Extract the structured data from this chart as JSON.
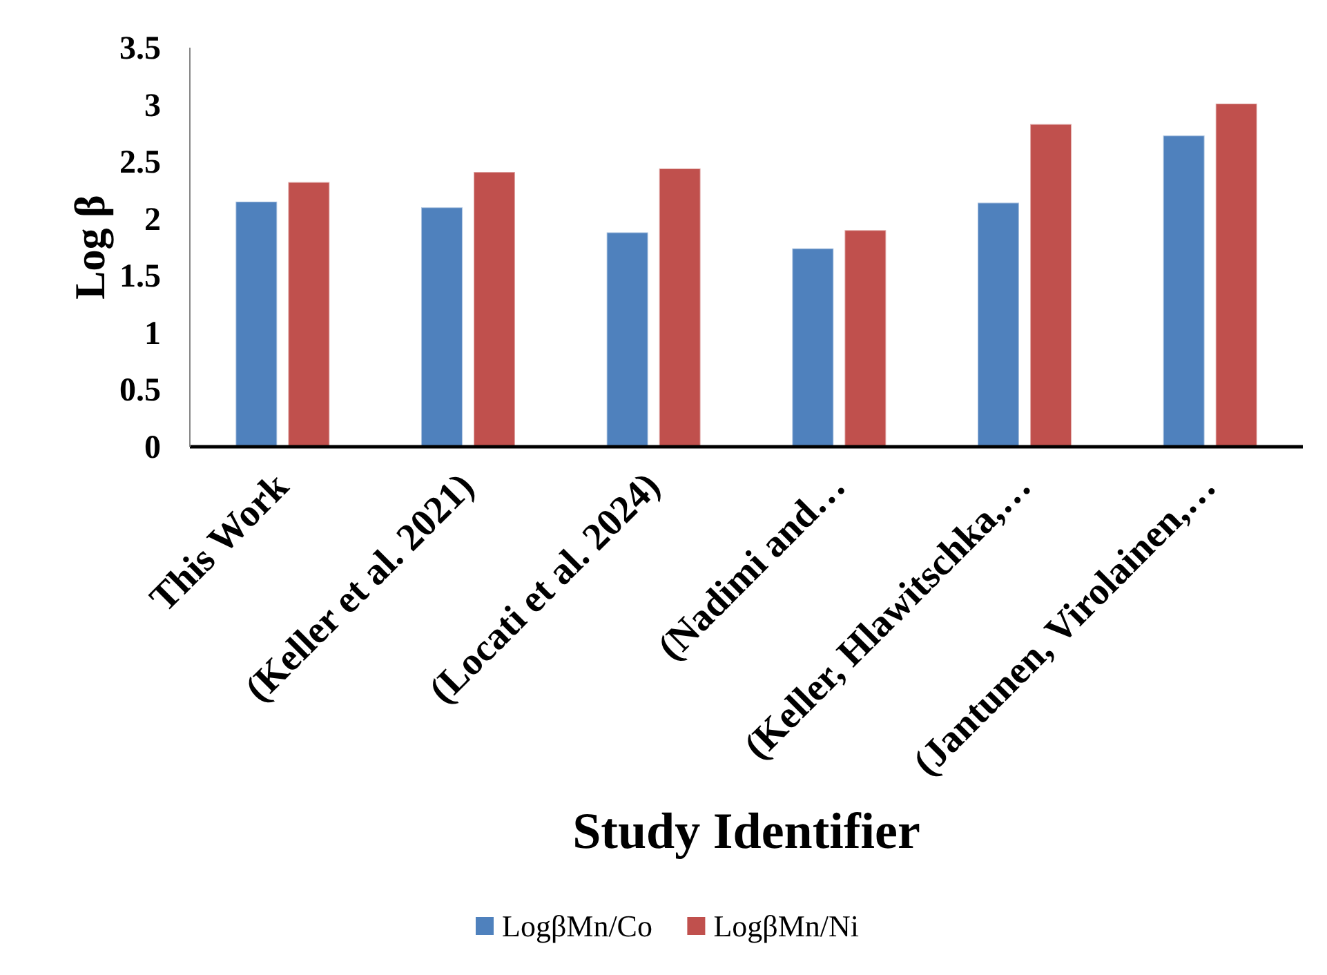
{
  "chart_data": {
    "type": "bar",
    "xlabel": "Study Identifier",
    "ylabel": "Log β",
    "categories": [
      "This Work",
      "(Keller et al. 2021)",
      "(Locati et al. 2024)",
      "(Nadimi and…",
      "(Keller, Hlawitschka,…",
      "(Jantunen, Virolainen,…"
    ],
    "series": [
      {
        "name": "LogβMn/Co",
        "color": "#4f81bd",
        "values": [
          2.15,
          2.1,
          1.88,
          1.74,
          2.14,
          2.73
        ]
      },
      {
        "name": "LogβMn/Ni",
        "color": "#c0504d",
        "values": [
          2.32,
          2.41,
          2.44,
          1.9,
          2.83,
          3.01
        ]
      }
    ],
    "ylim": [
      0,
      3.5
    ],
    "yticks": [
      0,
      0.5,
      1,
      1.5,
      2,
      2.5,
      3,
      3.5
    ],
    "grid": false,
    "legend": "bottom"
  }
}
